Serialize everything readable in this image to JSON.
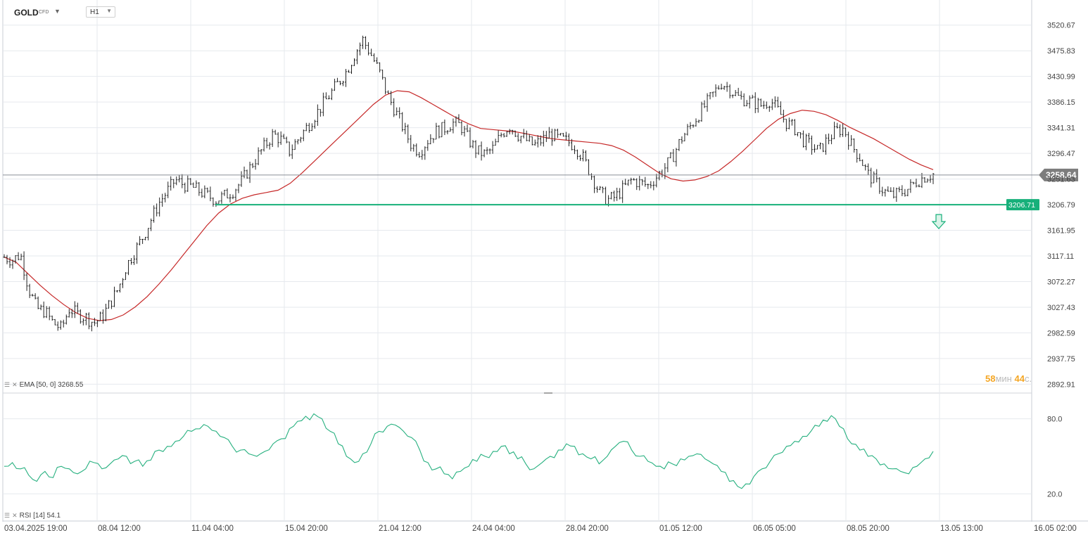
{
  "header": {
    "symbol": "GOLD",
    "symbol_type": "CFD",
    "timeframe": "H1"
  },
  "indicators": {
    "ema_label": "EMA [50, 0]",
    "ema_value": "3268.55",
    "rsi_label": "RSI [14]",
    "rsi_value": "54.1"
  },
  "timer": {
    "minutes": "58",
    "minutes_unit": "мин",
    "seconds": "44",
    "seconds_unit": "с."
  },
  "colors": {
    "ema": "#c62828",
    "rsi": "#26b07f",
    "support": "#17b07a",
    "price_tag": "#7d7d7d",
    "grid": "#e6e9ee",
    "candle": "#222222",
    "timer_accent": "#f5a623"
  },
  "chart_data": [
    {
      "type": "candlestick",
      "title": "GOLD",
      "ylim": [
        2870,
        3540
      ],
      "y_ticks": [
        "3520.67",
        "3475.83",
        "3430.99",
        "3386.15",
        "3341.31",
        "3296.47",
        "3251.63",
        "3206.79",
        "3161.95",
        "3117.11",
        "3072.27",
        "3027.43",
        "2982.59",
        "2937.75",
        "2892.91"
      ],
      "x_tick_labels": [
        "03.04.2025  19:00",
        "08.04  12:00",
        "11.04  04:00",
        "15.04  20:00",
        "21.04  12:00",
        "24.04  04:00",
        "28.04  20:00",
        "01.05  12:00",
        "06.05  05:00",
        "08.05  20:00",
        "13.05  13:00",
        "16.05  02:00"
      ],
      "last_price": "3258.64",
      "support_level": "3206.71",
      "price_path": [
        3115,
        3110,
        3120,
        3060,
        3025,
        3020,
        3000,
        2990,
        3025,
        3015,
        3010,
        3000,
        3010,
        3035,
        3060,
        3100,
        3125,
        3150,
        3180,
        3210,
        3230,
        3250,
        3242,
        3238,
        3230,
        3222,
        3215,
        3222,
        3230,
        3245,
        3268,
        3290,
        3310,
        3330,
        3320,
        3300,
        3320,
        3340,
        3360,
        3380,
        3400,
        3420,
        3440,
        3470,
        3495,
        3470,
        3440,
        3400,
        3370,
        3340,
        3310,
        3300,
        3320,
        3335,
        3340,
        3350,
        3345,
        3320,
        3300,
        3295,
        3305,
        3330,
        3345,
        3330,
        3320,
        3310,
        3320,
        3330,
        3322,
        3318,
        3310,
        3290,
        3260,
        3230,
        3215,
        3220,
        3235,
        3250,
        3245,
        3240,
        3255,
        3270,
        3290,
        3320,
        3340,
        3360,
        3380,
        3400,
        3420,
        3410,
        3395,
        3390,
        3385,
        3380,
        3390,
        3370,
        3350,
        3340,
        3320,
        3310,
        3300,
        3320,
        3335,
        3340,
        3310,
        3290,
        3260,
        3245,
        3230,
        3222,
        3228,
        3235,
        3248,
        3256,
        3260
      ],
      "series": [
        {
          "name": "EMA [50, 0]",
          "values": [
            3115,
            3106,
            3086,
            3066,
            3048,
            3032,
            3018,
            3008,
            3004,
            3006,
            3014,
            3028,
            3046,
            3068,
            3092,
            3118,
            3144,
            3170,
            3192,
            3208,
            3218,
            3224,
            3228,
            3232,
            3244,
            3262,
            3282,
            3302,
            3322,
            3342,
            3362,
            3382,
            3398,
            3406,
            3404,
            3394,
            3382,
            3370,
            3358,
            3348,
            3340,
            3338,
            3336,
            3334,
            3330,
            3326,
            3322,
            3320,
            3318,
            3316,
            3314,
            3310,
            3302,
            3290,
            3276,
            3262,
            3252,
            3248,
            3250,
            3256,
            3266,
            3282,
            3300,
            3320,
            3340,
            3356,
            3366,
            3372,
            3370,
            3364,
            3354,
            3342,
            3332,
            3322,
            3310,
            3298,
            3286,
            3276,
            3268
          ]
        }
      ]
    },
    {
      "type": "line",
      "title": "RSI [14]",
      "ylim": [
        0,
        100
      ],
      "y_ticks": [
        "80.0",
        "20.0"
      ],
      "series": [
        {
          "name": "RSI [14]",
          "values": [
            42,
            45,
            40,
            35,
            30,
            38,
            33,
            42,
            40,
            36,
            40,
            45,
            40,
            44,
            48,
            50,
            46,
            42,
            47,
            55,
            58,
            62,
            66,
            70,
            72,
            74,
            70,
            65,
            58,
            55,
            52,
            50,
            54,
            60,
            64,
            72,
            78,
            82,
            84,
            80,
            70,
            60,
            50,
            45,
            52,
            60,
            70,
            74,
            75,
            70,
            65,
            55,
            45,
            40,
            36,
            32,
            38,
            42,
            46,
            50,
            54,
            58,
            52,
            48,
            44,
            40,
            45,
            50,
            55,
            60,
            58,
            52,
            48,
            44,
            50,
            58,
            62,
            55,
            50,
            46,
            42,
            40,
            44,
            48,
            50,
            52,
            48,
            44,
            38,
            30,
            26,
            28,
            34,
            40,
            46,
            52,
            58,
            62,
            66,
            70,
            74,
            78,
            80,
            72,
            60,
            55,
            50,
            48,
            44,
            40,
            38,
            36,
            42,
            48,
            54
          ]
        }
      ]
    }
  ]
}
